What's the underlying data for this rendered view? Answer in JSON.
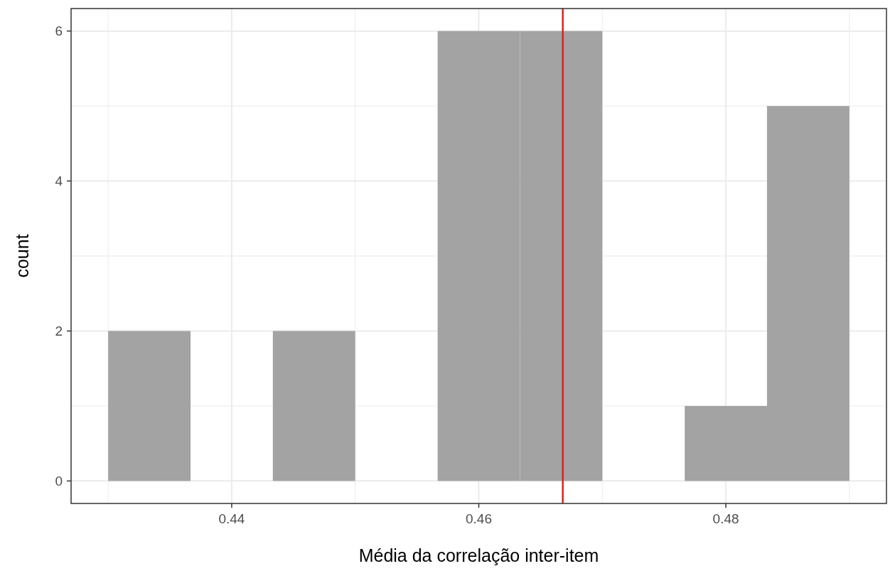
{
  "chart_data": {
    "type": "histogram",
    "xlabel": "Média da correlação inter-item",
    "ylabel": "count",
    "bins": [
      0.43,
      0.43667,
      0.44333,
      0.45,
      0.45667,
      0.46333,
      0.47,
      0.47667,
      0.48333,
      0.49
    ],
    "values": [
      2,
      0,
      2,
      0,
      6,
      6,
      0,
      1,
      5
    ],
    "color": "#a3a3a3",
    "xlim": [
      0.427,
      0.493
    ],
    "xticks": [
      0.44,
      0.46,
      0.48
    ],
    "ylim": [
      -0.3,
      6.3
    ],
    "yticks": [
      0,
      2,
      4,
      6
    ],
    "grid": true,
    "ref_lines": [
      {
        "axis": "x",
        "value": 0.4668,
        "color": "#e0201c"
      }
    ]
  }
}
